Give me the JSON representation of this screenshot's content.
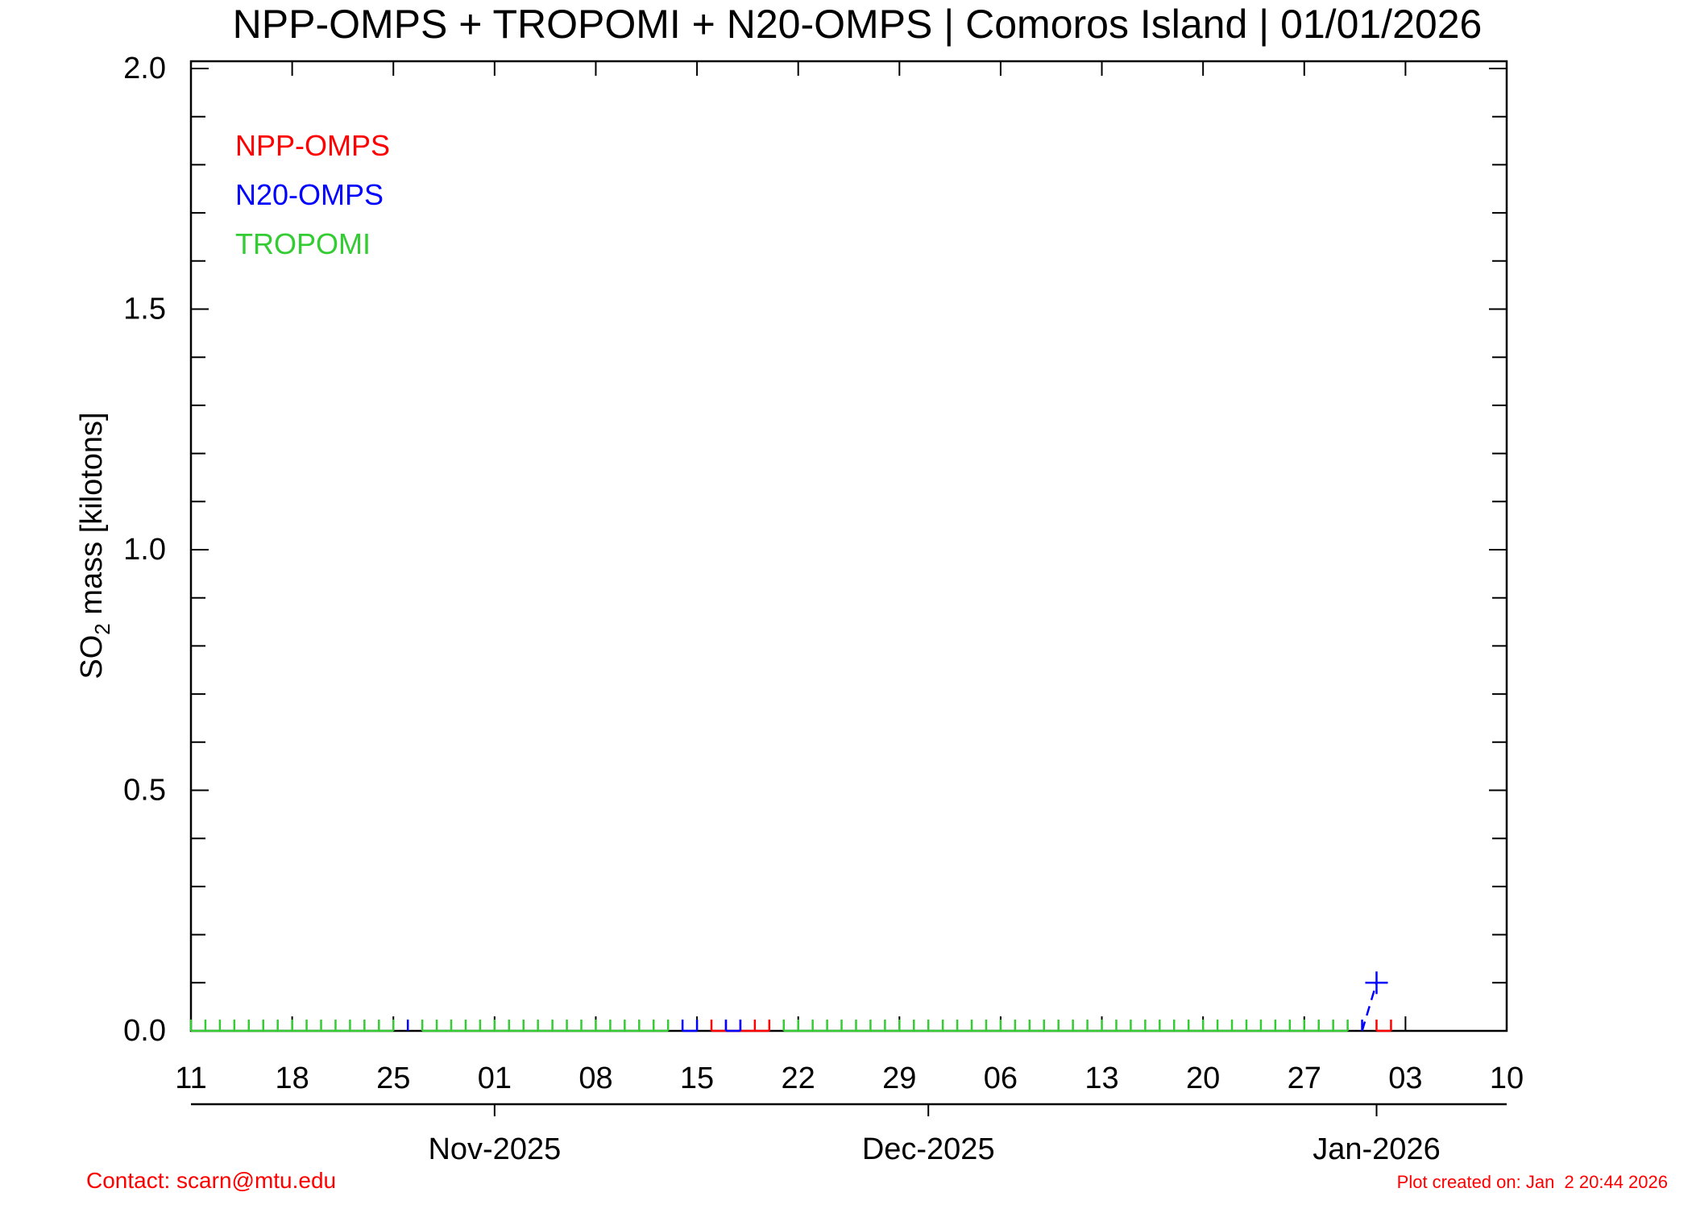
{
  "title": "NPP-OMPS + TROPOMI + N20-OMPS | Comoros Island | 01/01/2026",
  "footer": {
    "contact": "Contact: scarn@mtu.edu",
    "created": "Plot created on: Jan  2 20:44 2026"
  },
  "colors": {
    "npp": "#ff0000",
    "n20": "#0000ff",
    "tropomi": "#33cc33",
    "axis": "#000000",
    "footer": "#ff0000"
  },
  "chart_data": {
    "type": "line",
    "title": "NPP-OMPS + TROPOMI + N20-OMPS | Comoros Island | 01/01/2026",
    "ylabel_main": "SO",
    "ylabel_sub": "2",
    "ylabel_rest": " mass [kilotons]",
    "ylim": [
      0.0,
      2.0
    ],
    "y_ticks": [
      "0.0",
      "0.5",
      "1.0",
      "1.5",
      "2.0"
    ],
    "x_start": "2025-10-11",
    "x_end": "2026-01-10",
    "x_day_ticks": [
      {
        "date": "2025-10-11",
        "label": "11"
      },
      {
        "date": "2025-10-18",
        "label": "18"
      },
      {
        "date": "2025-10-25",
        "label": "25"
      },
      {
        "date": "2025-11-01",
        "label": "01"
      },
      {
        "date": "2025-11-08",
        "label": "08"
      },
      {
        "date": "2025-11-15",
        "label": "15"
      },
      {
        "date": "2025-11-22",
        "label": "22"
      },
      {
        "date": "2025-11-29",
        "label": "29"
      },
      {
        "date": "2025-12-06",
        "label": "06"
      },
      {
        "date": "2025-12-13",
        "label": "13"
      },
      {
        "date": "2025-12-20",
        "label": "20"
      },
      {
        "date": "2025-12-27",
        "label": "27"
      },
      {
        "date": "2026-01-03",
        "label": "03"
      },
      {
        "date": "2026-01-10",
        "label": "10"
      }
    ],
    "x_month_ticks": [
      {
        "date": "2025-11-01",
        "label": "Nov-2025"
      },
      {
        "date": "2025-12-01",
        "label": "Dec-2025"
      },
      {
        "date": "2026-01-01",
        "label": "Jan-2026"
      }
    ],
    "legend_placement": "top-left",
    "grid": false,
    "series": [
      {
        "name": "NPP-OMPS",
        "color": "#ff0000",
        "points": [
          [
            "2025-11-16",
            0.0
          ],
          [
            "2025-11-17",
            0.0
          ],
          [
            "2025-11-18",
            0.0
          ],
          [
            "2025-11-19",
            0.0
          ],
          [
            "2025-11-20",
            0.0
          ],
          [
            "2026-01-01",
            0.0
          ],
          [
            "2026-01-02",
            0.0
          ]
        ]
      },
      {
        "name": "N20-OMPS",
        "color": "#0000ff",
        "points": [
          [
            "2025-10-26",
            0.0
          ],
          [
            "2025-11-14",
            0.0
          ],
          [
            "2025-11-15",
            0.0
          ],
          [
            "2025-11-17",
            0.0
          ],
          [
            "2025-11-18",
            0.0
          ],
          [
            "2025-12-31",
            0.0
          ],
          [
            "2026-01-01",
            0.1
          ]
        ]
      },
      {
        "name": "TROPOMI",
        "color": "#33cc33",
        "points": [
          [
            "2025-10-11",
            0.0
          ],
          [
            "2025-10-12",
            0.0
          ],
          [
            "2025-10-13",
            0.0
          ],
          [
            "2025-10-14",
            0.0
          ],
          [
            "2025-10-15",
            0.0
          ],
          [
            "2025-10-16",
            0.0
          ],
          [
            "2025-10-17",
            0.0
          ],
          [
            "2025-10-18",
            0.0
          ],
          [
            "2025-10-19",
            0.0
          ],
          [
            "2025-10-20",
            0.0
          ],
          [
            "2025-10-21",
            0.0
          ],
          [
            "2025-10-22",
            0.0
          ],
          [
            "2025-10-23",
            0.0
          ],
          [
            "2025-10-24",
            0.0
          ],
          [
            "2025-10-25",
            0.0
          ],
          [
            "2025-10-27",
            0.0
          ],
          [
            "2025-10-28",
            0.0
          ],
          [
            "2025-10-29",
            0.0
          ],
          [
            "2025-10-30",
            0.0
          ],
          [
            "2025-10-31",
            0.0
          ],
          [
            "2025-11-01",
            0.0
          ],
          [
            "2025-11-02",
            0.0
          ],
          [
            "2025-11-03",
            0.0
          ],
          [
            "2025-11-04",
            0.0
          ],
          [
            "2025-11-05",
            0.0
          ],
          [
            "2025-11-06",
            0.0
          ],
          [
            "2025-11-07",
            0.0
          ],
          [
            "2025-11-08",
            0.0
          ],
          [
            "2025-11-09",
            0.0
          ],
          [
            "2025-11-10",
            0.0
          ],
          [
            "2025-11-11",
            0.0
          ],
          [
            "2025-11-12",
            0.0
          ],
          [
            "2025-11-13",
            0.0
          ],
          [
            "2025-11-21",
            0.0
          ],
          [
            "2025-11-22",
            0.0
          ],
          [
            "2025-11-23",
            0.0
          ],
          [
            "2025-11-24",
            0.0
          ],
          [
            "2025-11-25",
            0.0
          ],
          [
            "2025-11-26",
            0.0
          ],
          [
            "2025-11-27",
            0.0
          ],
          [
            "2025-11-28",
            0.0
          ],
          [
            "2025-11-29",
            0.0
          ],
          [
            "2025-11-30",
            0.0
          ],
          [
            "2025-12-01",
            0.0
          ],
          [
            "2025-12-02",
            0.0
          ],
          [
            "2025-12-03",
            0.0
          ],
          [
            "2025-12-04",
            0.0
          ],
          [
            "2025-12-05",
            0.0
          ],
          [
            "2025-12-06",
            0.0
          ],
          [
            "2025-12-07",
            0.0
          ],
          [
            "2025-12-08",
            0.0
          ],
          [
            "2025-12-09",
            0.0
          ],
          [
            "2025-12-10",
            0.0
          ],
          [
            "2025-12-11",
            0.0
          ],
          [
            "2025-12-12",
            0.0
          ],
          [
            "2025-12-13",
            0.0
          ],
          [
            "2025-12-14",
            0.0
          ],
          [
            "2025-12-15",
            0.0
          ],
          [
            "2025-12-16",
            0.0
          ],
          [
            "2025-12-17",
            0.0
          ],
          [
            "2025-12-18",
            0.0
          ],
          [
            "2025-12-19",
            0.0
          ],
          [
            "2025-12-20",
            0.0
          ],
          [
            "2025-12-21",
            0.0
          ],
          [
            "2025-12-22",
            0.0
          ],
          [
            "2025-12-23",
            0.0
          ],
          [
            "2025-12-24",
            0.0
          ],
          [
            "2025-12-25",
            0.0
          ],
          [
            "2025-12-26",
            0.0
          ],
          [
            "2025-12-27",
            0.0
          ],
          [
            "2025-12-28",
            0.0
          ],
          [
            "2025-12-29",
            0.0
          ],
          [
            "2025-12-30",
            0.0
          ]
        ]
      }
    ]
  }
}
